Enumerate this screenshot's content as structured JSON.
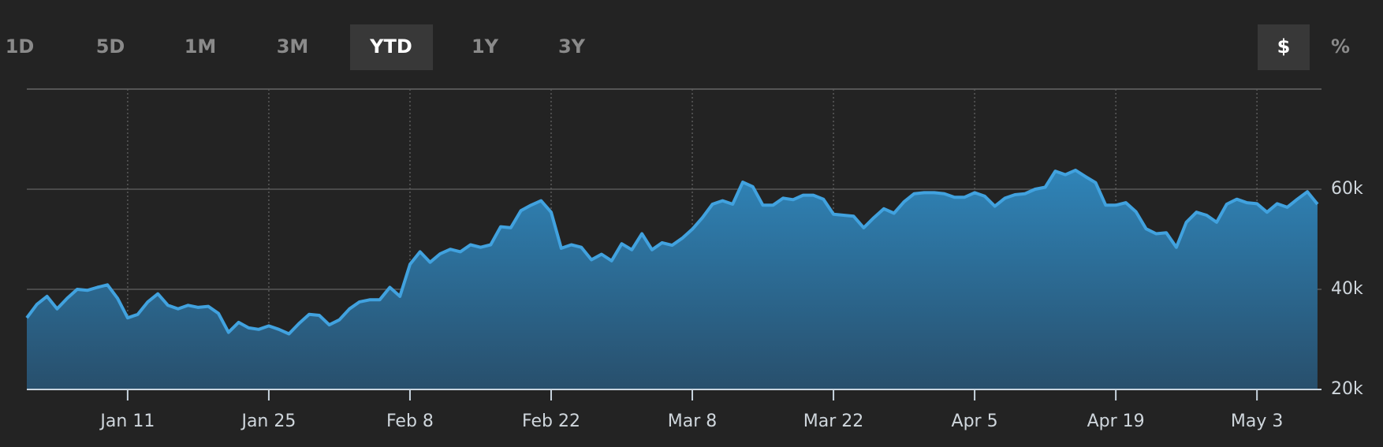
{
  "range_buttons": [
    "1D",
    "5D",
    "1M",
    "3M",
    "YTD",
    "1Y",
    "3Y"
  ],
  "unit_buttons": [
    "$",
    "%"
  ],
  "chart_data": {
    "type": "area",
    "x": [
      "Jan 1",
      "Jan 2",
      "Jan 3",
      "Jan 4",
      "Jan 5",
      "Jan 6",
      "Jan 7",
      "Jan 8",
      "Jan 9",
      "Jan 10",
      "Jan 11",
      "Jan 12",
      "Jan 13",
      "Jan 14",
      "Jan 15",
      "Jan 16",
      "Jan 17",
      "Jan 18",
      "Jan 19",
      "Jan 20",
      "Jan 21",
      "Jan 22",
      "Jan 23",
      "Jan 24",
      "Jan 25",
      "Jan 26",
      "Jan 27",
      "Jan 28",
      "Jan 29",
      "Jan 30",
      "Jan 31",
      "Feb 1",
      "Feb 2",
      "Feb 3",
      "Feb 4",
      "Feb 5",
      "Feb 6",
      "Feb 7",
      "Feb 8",
      "Feb 9",
      "Feb 10",
      "Feb 11",
      "Feb 12",
      "Feb 13",
      "Feb 14",
      "Feb 15",
      "Feb 16",
      "Feb 17",
      "Feb 18",
      "Feb 19",
      "Feb 20",
      "Feb 21",
      "Feb 22",
      "Feb 23",
      "Feb 24",
      "Feb 25",
      "Feb 26",
      "Feb 27",
      "Feb 28",
      "Mar 1",
      "Mar 2",
      "Mar 3",
      "Mar 4",
      "Mar 5",
      "Mar 6",
      "Mar 7",
      "Mar 8",
      "Mar 9",
      "Mar 10",
      "Mar 11",
      "Mar 12",
      "Mar 13",
      "Mar 14",
      "Mar 15",
      "Mar 16",
      "Mar 17",
      "Mar 18",
      "Mar 19",
      "Mar 20",
      "Mar 21",
      "Mar 22",
      "Mar 23",
      "Mar 24",
      "Mar 25",
      "Mar 26",
      "Mar 27",
      "Mar 28",
      "Mar 29",
      "Mar 30",
      "Mar 31",
      "Apr 1",
      "Apr 2",
      "Apr 3",
      "Apr 4",
      "Apr 5",
      "Apr 6",
      "Apr 7",
      "Apr 8",
      "Apr 9",
      "Apr 10",
      "Apr 11",
      "Apr 12",
      "Apr 13",
      "Apr 14",
      "Apr 15",
      "Apr 16",
      "Apr 17",
      "Apr 18",
      "Apr 19",
      "Apr 20",
      "Apr 21",
      "Apr 22",
      "Apr 23",
      "Apr 24",
      "Apr 25",
      "Apr 26",
      "Apr 27",
      "Apr 28",
      "Apr 29",
      "Apr 30",
      "May 1",
      "May 2",
      "May 3",
      "May 4",
      "May 5",
      "May 6",
      "May 7",
      "May 8",
      "May 9"
    ],
    "values": [
      34300,
      37000,
      38600,
      36100,
      38200,
      40000,
      39800,
      40400,
      40900,
      38200,
      34300,
      35000,
      37500,
      39100,
      36800,
      36100,
      36800,
      36400,
      36600,
      35200,
      31400,
      33400,
      32300,
      32000,
      32700,
      32000,
      31100,
      33200,
      35000,
      34800,
      32900,
      33900,
      36100,
      37500,
      37900,
      37900,
      40400,
      38600,
      45000,
      47500,
      45400,
      47100,
      48000,
      47500,
      48900,
      48400,
      48900,
      52500,
      52300,
      55700,
      56800,
      57700,
      55400,
      48200,
      48900,
      48400,
      45900,
      47000,
      45700,
      49100,
      47900,
      51100,
      47900,
      49300,
      48800,
      50200,
      52000,
      54300,
      57000,
      57700,
      57000,
      61400,
      60500,
      56800,
      56800,
      58200,
      57900,
      58800,
      58800,
      58000,
      55000,
      54800,
      54600,
      52300,
      54300,
      56100,
      55200,
      57500,
      59100,
      59300,
      59300,
      59100,
      58400,
      58400,
      59300,
      58600,
      56600,
      58200,
      58900,
      59100,
      60000,
      60400,
      63600,
      62900,
      63800,
      62500,
      61300,
      56800,
      56800,
      57300,
      55500,
      52100,
      51100,
      51300,
      48400,
      53400,
      55400,
      54800,
      53400,
      57000,
      58000,
      57300,
      57100,
      55400,
      57100,
      56400,
      58000,
      59500,
      57000
    ],
    "color": "#41a2df",
    "xticks": [
      "Jan 11",
      "Jan 25",
      "Feb 8",
      "Feb 22",
      "Mar 8",
      "Mar 22",
      "Apr 5",
      "Apr 19",
      "May 3"
    ],
    "ylim": [
      20000,
      80000
    ],
    "yticks": [
      {
        "value": 20000,
        "label": "20k"
      },
      {
        "value": 40000,
        "label": "40k"
      },
      {
        "value": 60000,
        "label": "60k"
      }
    ],
    "grid": true
  }
}
